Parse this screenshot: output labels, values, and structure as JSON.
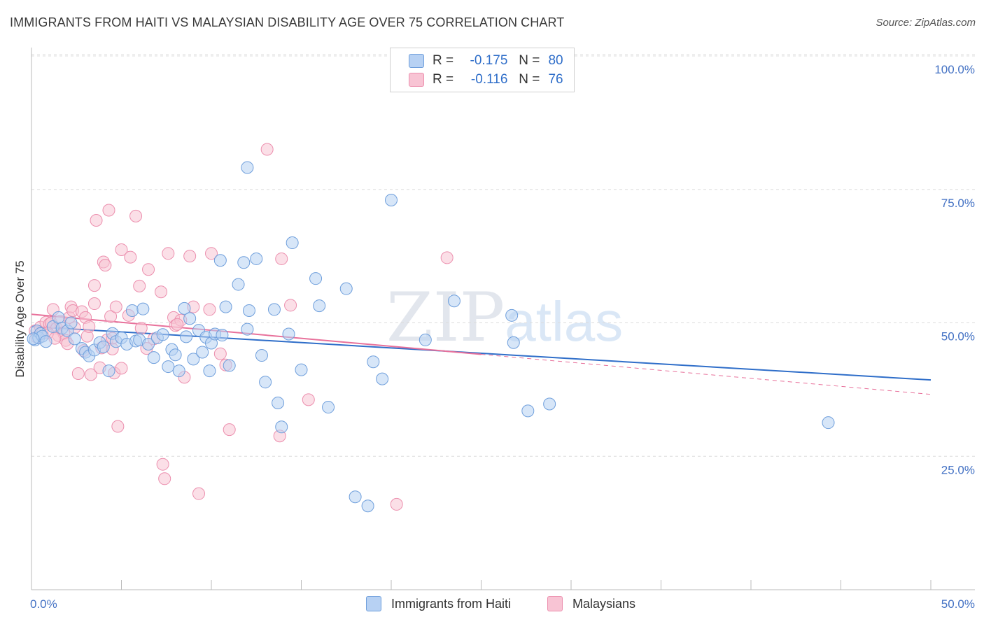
{
  "header": {
    "title": "IMMIGRANTS FROM HAITI VS MALAYSIAN DISABILITY AGE OVER 75 CORRELATION CHART",
    "source": "Source: ZipAtlas.com"
  },
  "legend": {
    "r_label": "R =",
    "n_label": "N =",
    "series1": {
      "r": "-0.175",
      "n": "80"
    },
    "series2": {
      "r": "-0.116",
      "n": "76"
    }
  },
  "watermark": {
    "zip": "ZIP",
    "atlas": "atlas"
  },
  "colors": {
    "haiti_fill": "#b7d1f3",
    "haiti_stroke": "#6f9fdc",
    "haiti_line": "#2f6ec9",
    "malay_fill": "#f8c4d4",
    "malay_stroke": "#ec8fae",
    "malay_line": "#e8719b",
    "axis_label": "#4472c4"
  },
  "chart_data": {
    "type": "scatter",
    "title": "IMMIGRANTS FROM HAITI VS MALAYSIAN DISABILITY AGE OVER 75 CORRELATION CHART",
    "xlabel": "",
    "ylabel": "Disability Age Over 75",
    "xlim": [
      0,
      50
    ],
    "ylim": [
      0,
      105
    ],
    "x_tick_labels": [
      "0.0%",
      "50.0%"
    ],
    "y_ticks": [
      25,
      50,
      75,
      100
    ],
    "y_tick_labels": [
      "25.0%",
      "50.0%",
      "75.0%",
      "100.0%"
    ],
    "grid": "horizontal dashed",
    "legend_position": "top-center",
    "series": [
      {
        "name": "Immigrants from Haiti",
        "r": -0.175,
        "n": 80,
        "trend": {
          "x": [
            0,
            50
          ],
          "y": [
            49.3,
            39.3
          ]
        },
        "points": [
          [
            0.2,
            46.8
          ],
          [
            0.3,
            48.5
          ],
          [
            0.4,
            47.2
          ],
          [
            0.5,
            48.0
          ],
          [
            0.6,
            47.5
          ],
          [
            0.8,
            46.5
          ],
          [
            1.2,
            49.3
          ],
          [
            1.5,
            51.0
          ],
          [
            1.7,
            49.0
          ],
          [
            2.0,
            48.5
          ],
          [
            2.2,
            50.0
          ],
          [
            2.4,
            47.0
          ],
          [
            2.8,
            45.2
          ],
          [
            3.0,
            44.5
          ],
          [
            3.2,
            43.8
          ],
          [
            3.5,
            44.9
          ],
          [
            3.8,
            46.3
          ],
          [
            4.0,
            45.5
          ],
          [
            4.3,
            41.0
          ],
          [
            4.5,
            48.0
          ],
          [
            4.7,
            46.5
          ],
          [
            5.0,
            47.2
          ],
          [
            5.3,
            46.0
          ],
          [
            5.6,
            52.3
          ],
          [
            5.8,
            46.6
          ],
          [
            6.0,
            46.8
          ],
          [
            6.2,
            52.6
          ],
          [
            6.5,
            46.0
          ],
          [
            6.8,
            43.5
          ],
          [
            7.0,
            47.2
          ],
          [
            7.3,
            47.8
          ],
          [
            7.6,
            41.8
          ],
          [
            7.8,
            45.0
          ],
          [
            8.0,
            44.0
          ],
          [
            8.2,
            41.0
          ],
          [
            8.5,
            52.7
          ],
          [
            8.6,
            47.4
          ],
          [
            8.8,
            50.8
          ],
          [
            9.0,
            43.2
          ],
          [
            9.3,
            48.6
          ],
          [
            9.5,
            44.5
          ],
          [
            9.7,
            47.3
          ],
          [
            9.9,
            41.0
          ],
          [
            10.0,
            46.2
          ],
          [
            10.2,
            47.9
          ],
          [
            10.5,
            61.7
          ],
          [
            10.6,
            47.7
          ],
          [
            10.8,
            53.0
          ],
          [
            11.0,
            42.0
          ],
          [
            11.5,
            57.2
          ],
          [
            11.8,
            61.3
          ],
          [
            12.0,
            48.8
          ],
          [
            12.1,
            52.3
          ],
          [
            12.0,
            79.1
          ],
          [
            12.5,
            62.0
          ],
          [
            12.8,
            43.9
          ],
          [
            13.0,
            38.9
          ],
          [
            13.5,
            52.5
          ],
          [
            13.7,
            35.0
          ],
          [
            13.9,
            30.5
          ],
          [
            14.3,
            47.9
          ],
          [
            14.5,
            65.0
          ],
          [
            15.0,
            41.2
          ],
          [
            15.8,
            58.3
          ],
          [
            16.0,
            53.2
          ],
          [
            16.5,
            34.2
          ],
          [
            17.5,
            56.4
          ],
          [
            18.0,
            17.4
          ],
          [
            18.7,
            15.7
          ],
          [
            19.0,
            42.7
          ],
          [
            19.5,
            39.5
          ],
          [
            20.0,
            73.0
          ],
          [
            21.9,
            46.8
          ],
          [
            23.5,
            54.1
          ],
          [
            26.7,
            51.4
          ],
          [
            26.8,
            46.3
          ],
          [
            27.6,
            33.5
          ],
          [
            28.8,
            34.8
          ],
          [
            44.3,
            31.3
          ],
          [
            0.1,
            47.0
          ]
        ]
      },
      {
        "name": "Malaysians",
        "r": -0.116,
        "n": 76,
        "trend": {
          "x": [
            0,
            25
          ],
          "y": [
            51.6,
            44.1
          ]
        },
        "trend_extension": {
          "x": [
            25,
            50
          ],
          "y": [
            44.1,
            36.6
          ]
        },
        "points": [
          [
            0.2,
            48.5
          ],
          [
            0.3,
            47.3
          ],
          [
            0.5,
            49.2
          ],
          [
            0.6,
            48.0
          ],
          [
            0.8,
            50.1
          ],
          [
            1.0,
            49.8
          ],
          [
            1.1,
            50.0
          ],
          [
            1.2,
            52.5
          ],
          [
            1.4,
            49.0
          ],
          [
            1.5,
            47.6
          ],
          [
            1.6,
            50.3
          ],
          [
            1.8,
            48.0
          ],
          [
            1.9,
            46.7
          ],
          [
            2.0,
            46.1
          ],
          [
            2.1,
            51.0
          ],
          [
            2.2,
            53.0
          ],
          [
            2.3,
            52.3
          ],
          [
            2.4,
            49.1
          ],
          [
            2.6,
            40.5
          ],
          [
            2.8,
            52.1
          ],
          [
            2.9,
            44.8
          ],
          [
            3.0,
            51.0
          ],
          [
            3.1,
            47.5
          ],
          [
            3.2,
            49.3
          ],
          [
            3.3,
            40.3
          ],
          [
            3.5,
            57.0
          ],
          [
            3.5,
            53.6
          ],
          [
            3.6,
            69.2
          ],
          [
            3.8,
            41.6
          ],
          [
            3.9,
            45.3
          ],
          [
            4.0,
            61.4
          ],
          [
            4.1,
            60.8
          ],
          [
            4.2,
            46.8
          ],
          [
            4.3,
            71.1
          ],
          [
            4.4,
            51.2
          ],
          [
            4.5,
            47.1
          ],
          [
            4.5,
            45.1
          ],
          [
            4.6,
            40.6
          ],
          [
            4.7,
            53.0
          ],
          [
            4.8,
            30.6
          ],
          [
            5.0,
            63.7
          ],
          [
            5.0,
            41.5
          ],
          [
            5.4,
            51.4
          ],
          [
            5.5,
            62.3
          ],
          [
            5.8,
            70.0
          ],
          [
            6.0,
            56.9
          ],
          [
            6.1,
            49.0
          ],
          [
            6.4,
            45.2
          ],
          [
            6.5,
            60.0
          ],
          [
            7.2,
            55.8
          ],
          [
            7.3,
            23.5
          ],
          [
            7.4,
            20.8
          ],
          [
            7.6,
            63.0
          ],
          [
            7.9,
            51.0
          ],
          [
            8.0,
            49.5
          ],
          [
            8.3,
            50.5
          ],
          [
            8.5,
            39.8
          ],
          [
            8.8,
            62.5
          ],
          [
            9.0,
            53.0
          ],
          [
            9.3,
            18.0
          ],
          [
            10.0,
            63.0
          ],
          [
            10.5,
            44.2
          ],
          [
            10.8,
            42.1
          ],
          [
            11.0,
            30.0
          ],
          [
            13.1,
            82.5
          ],
          [
            13.8,
            28.8
          ],
          [
            13.9,
            62.0
          ],
          [
            14.4,
            53.3
          ],
          [
            15.4,
            35.6
          ],
          [
            20.3,
            16.0
          ],
          [
            23.1,
            62.2
          ],
          [
            9.9,
            52.5
          ],
          [
            8.1,
            49.7
          ],
          [
            6.8,
            47.0
          ],
          [
            0.9,
            48.1
          ],
          [
            1.3,
            47.1
          ]
        ]
      }
    ]
  },
  "bottom_legend": {
    "item1": "Immigrants from Haiti",
    "item2": "Malaysians"
  }
}
